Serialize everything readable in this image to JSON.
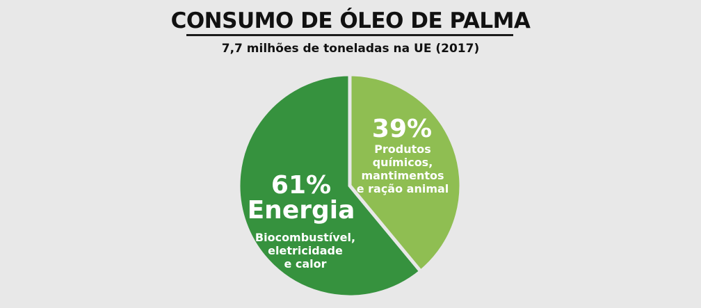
{
  "title": "CONSUMO DE ÓLEO DE PALMA",
  "subtitle": "7,7 milhões de toneladas na UE (2017)",
  "chart_data": {
    "type": "pie",
    "title": "CONSUMO DE ÓLEO DE PALMA",
    "subtitle": "7,7 milhões de toneladas na UE (2017)",
    "slices": [
      {
        "pct_label": "39%",
        "value": 39,
        "name": "",
        "desc_lines": [
          "Produtos",
          "químicos,",
          "mantimentos",
          "e ração animal"
        ],
        "color": "#8fbe52"
      },
      {
        "pct_label": "61%",
        "value": 61,
        "name": "Energia",
        "desc_lines": [
          "Biocombustível,",
          "eletricidade",
          "e calor"
        ],
        "color": "#36923e"
      }
    ]
  }
}
